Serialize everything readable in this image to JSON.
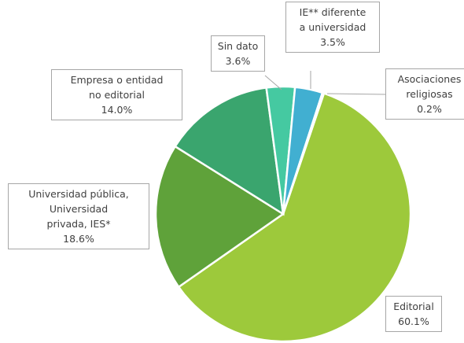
{
  "chart_data": {
    "type": "pie",
    "categories": [
      "Editorial",
      "Universidad pública,\nUniversidad\nprivada, IES*",
      "Empresa o entidad\nno editorial",
      "Sin dato",
      "IE** diferente\na universidad",
      "Asociaciones\nreligiosas"
    ],
    "values": [
      60.1,
      18.6,
      14.0,
      3.6,
      3.5,
      0.2
    ],
    "value_labels": [
      "60.1%",
      "18.6%",
      "14.0%",
      "3.6%",
      "3.5%",
      "0.2%"
    ],
    "colors": [
      "#9dc93b",
      "#5fa23a",
      "#3aa56e",
      "#45c9a1",
      "#41afd1",
      "#3e8ec4"
    ]
  }
}
